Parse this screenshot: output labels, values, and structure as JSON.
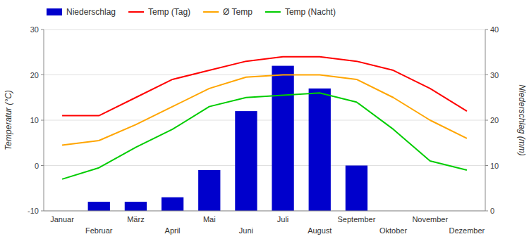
{
  "chart_data": {
    "type": "bar",
    "categories": [
      "Januar",
      "Februar",
      "März",
      "April",
      "Mai",
      "Juni",
      "Juli",
      "August",
      "September",
      "Oktober",
      "November",
      "Dezember"
    ],
    "ylabel": "Temperatur (°C)",
    "y2label": "Niederschlag (mm)",
    "series": [
      {
        "name": "Niederschlag",
        "type": "bar",
        "axis": "y2",
        "color": "#0000cc",
        "values": [
          0,
          2,
          2,
          3,
          9,
          22,
          32,
          27,
          10,
          0,
          0,
          0
        ]
      },
      {
        "name": "Temp (Tag)",
        "type": "line",
        "color": "#ff0000",
        "values": [
          11,
          11,
          15,
          19,
          21,
          23,
          24,
          24,
          23,
          21,
          17,
          12
        ]
      },
      {
        "name": "Ø Temp",
        "type": "line",
        "color": "#ffa500",
        "values": [
          4.5,
          5.5,
          9,
          13,
          17,
          19.5,
          20,
          20,
          19,
          15,
          10,
          6
        ]
      },
      {
        "name": "Temp (Nacht)",
        "type": "line",
        "color": "#00cc00",
        "values": [
          -3,
          -0.5,
          4,
          8,
          13,
          15,
          15.5,
          16,
          14,
          8,
          1,
          -1
        ]
      }
    ],
    "ylim": [
      -10,
      30
    ],
    "yticks": [
      -10,
      0,
      10,
      20,
      30
    ],
    "y2lim": [
      0,
      40
    ],
    "y2ticks": [
      0,
      10,
      20,
      30,
      40
    ],
    "grid": true,
    "legend": "top"
  }
}
